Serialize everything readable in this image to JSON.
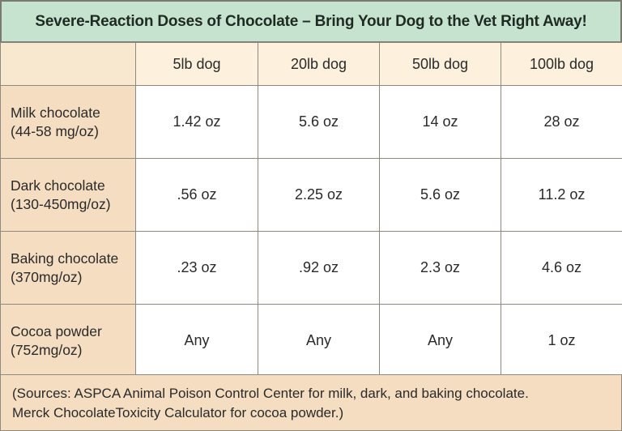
{
  "title": "Severe-Reaction Doses of Chocolate – Bring Your Dog to the Vet Right Away!",
  "columns": [
    "5lb dog",
    "20lb dog",
    "50lb dog",
    "100lb dog"
  ],
  "rows": [
    {
      "label_line1": "Milk chocolate",
      "label_line2": "(44-58 mg/oz)",
      "values": [
        "1.42 oz",
        "5.6 oz",
        "14 oz",
        "28 oz"
      ]
    },
    {
      "label_line1": "Dark chocolate",
      "label_line2": "(130-450mg/oz)",
      "values": [
        ".56 oz",
        "2.25 oz",
        "5.6 oz",
        "11.2 oz"
      ]
    },
    {
      "label_line1": "Baking chocolate",
      "label_line2": "(370mg/oz)",
      "values": [
        ".23 oz",
        ".92 oz",
        "2.3 oz",
        "4.6 oz"
      ]
    },
    {
      "label_line1": "Cocoa powder",
      "label_line2": "(752mg/oz)",
      "values": [
        "Any",
        "Any",
        "Any",
        "1 oz"
      ]
    }
  ],
  "sources": {
    "line1": "(Sources: ASPCA Animal Poison Control Center for milk, dark, and baking chocolate.",
    "line2": "Merck ChocolateToxicity Calculator for cocoa powder.)"
  },
  "colors": {
    "title_bg": "#c6e3cf",
    "header_bg": "#fdf0dc",
    "rowhead_bg": "#f4ddc0",
    "cell_bg": "#ffffff",
    "border": "#8f8a80"
  }
}
